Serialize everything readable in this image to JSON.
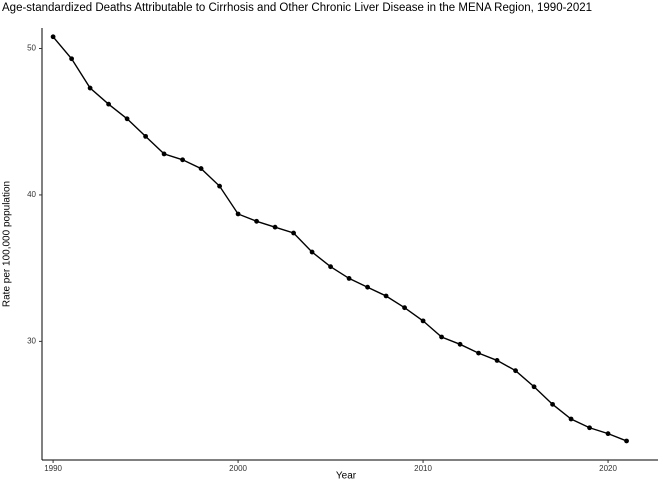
{
  "chart_data": {
    "type": "line",
    "title": "Age-standardized Deaths Attributable to Cirrhosis and Other Chronic Liver Disease in the MENA Region, 1990-2021",
    "x_label": "Year",
    "y_label": "Rate per 100,000 population",
    "x": [
      1990,
      1991,
      1992,
      1993,
      1994,
      1995,
      1996,
      1997,
      1998,
      1999,
      2000,
      2001,
      2002,
      2003,
      2004,
      2005,
      2006,
      2007,
      2008,
      2009,
      2010,
      2011,
      2012,
      2013,
      2014,
      2015,
      2016,
      2017,
      2018,
      2019,
      2020,
      2021
    ],
    "series": [
      {
        "name": "Rate",
        "color": "#000000",
        "values": [
          50.8,
          49.3,
          47.3,
          46.2,
          45.2,
          44.0,
          42.8,
          42.4,
          41.8,
          40.6,
          38.7,
          38.2,
          37.8,
          37.4,
          36.1,
          35.1,
          34.3,
          33.7,
          33.1,
          32.3,
          31.4,
          30.3,
          29.8,
          29.2,
          28.7,
          28.0,
          26.9,
          25.7,
          24.7,
          24.1,
          23.7,
          23.2
        ]
      }
    ],
    "xlim": [
      1989.4,
      2022.7
    ],
    "ylim": [
      21.9,
      51.4
    ],
    "xticks": [
      1990,
      2000,
      2010,
      2020
    ],
    "yticks": [
      30,
      40,
      50
    ],
    "grid": false
  }
}
